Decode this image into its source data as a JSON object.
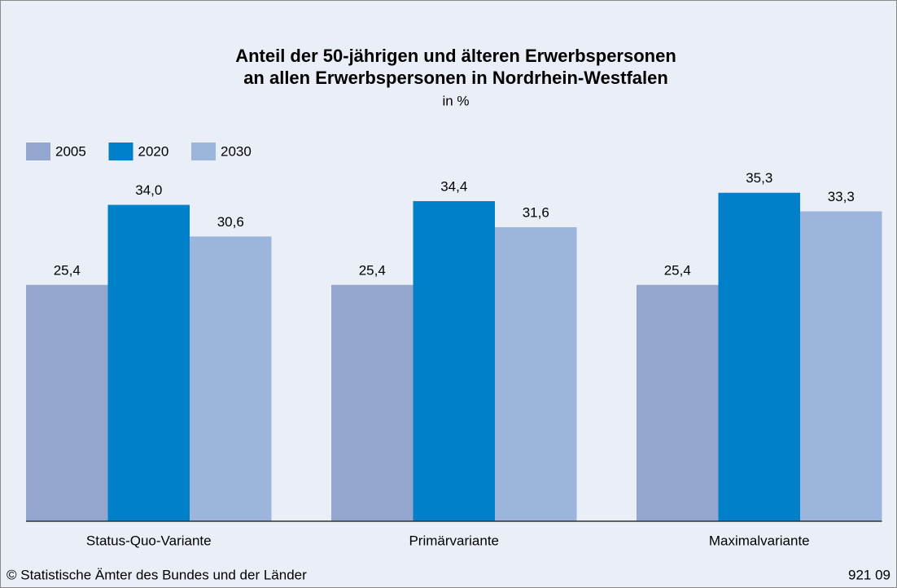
{
  "chart_data": {
    "type": "bar",
    "title": [
      "Anteil der 50-jährigen und älteren Erwerbspersonen",
      "an allen Erwerbspersonen in Nordrhein-Westfalen"
    ],
    "subtitle": "in %",
    "categories": [
      "Status-Quo-Variante",
      "Primärvariante",
      "Maximalvariante"
    ],
    "series": [
      {
        "name": "2005",
        "color": "#93a6d0",
        "values": [
          25.4,
          25.4,
          25.4
        ],
        "value_labels": [
          "25,4",
          "25,4",
          "25,4"
        ]
      },
      {
        "name": "2020",
        "color": "#0080c8",
        "values": [
          34.0,
          34.4,
          35.3
        ],
        "value_labels": [
          "34,0",
          "34,4",
          "35,3"
        ]
      },
      {
        "name": "2030",
        "color": "#9bb5dc",
        "values": [
          30.6,
          31.6,
          33.3
        ],
        "value_labels": [
          "30,6",
          "31,6",
          "33,3"
        ]
      }
    ],
    "ylim": [
      0,
      40
    ],
    "legend": "top-left",
    "source": "© Statistische Ämter des Bundes und der Länder",
    "code": "921 09"
  }
}
